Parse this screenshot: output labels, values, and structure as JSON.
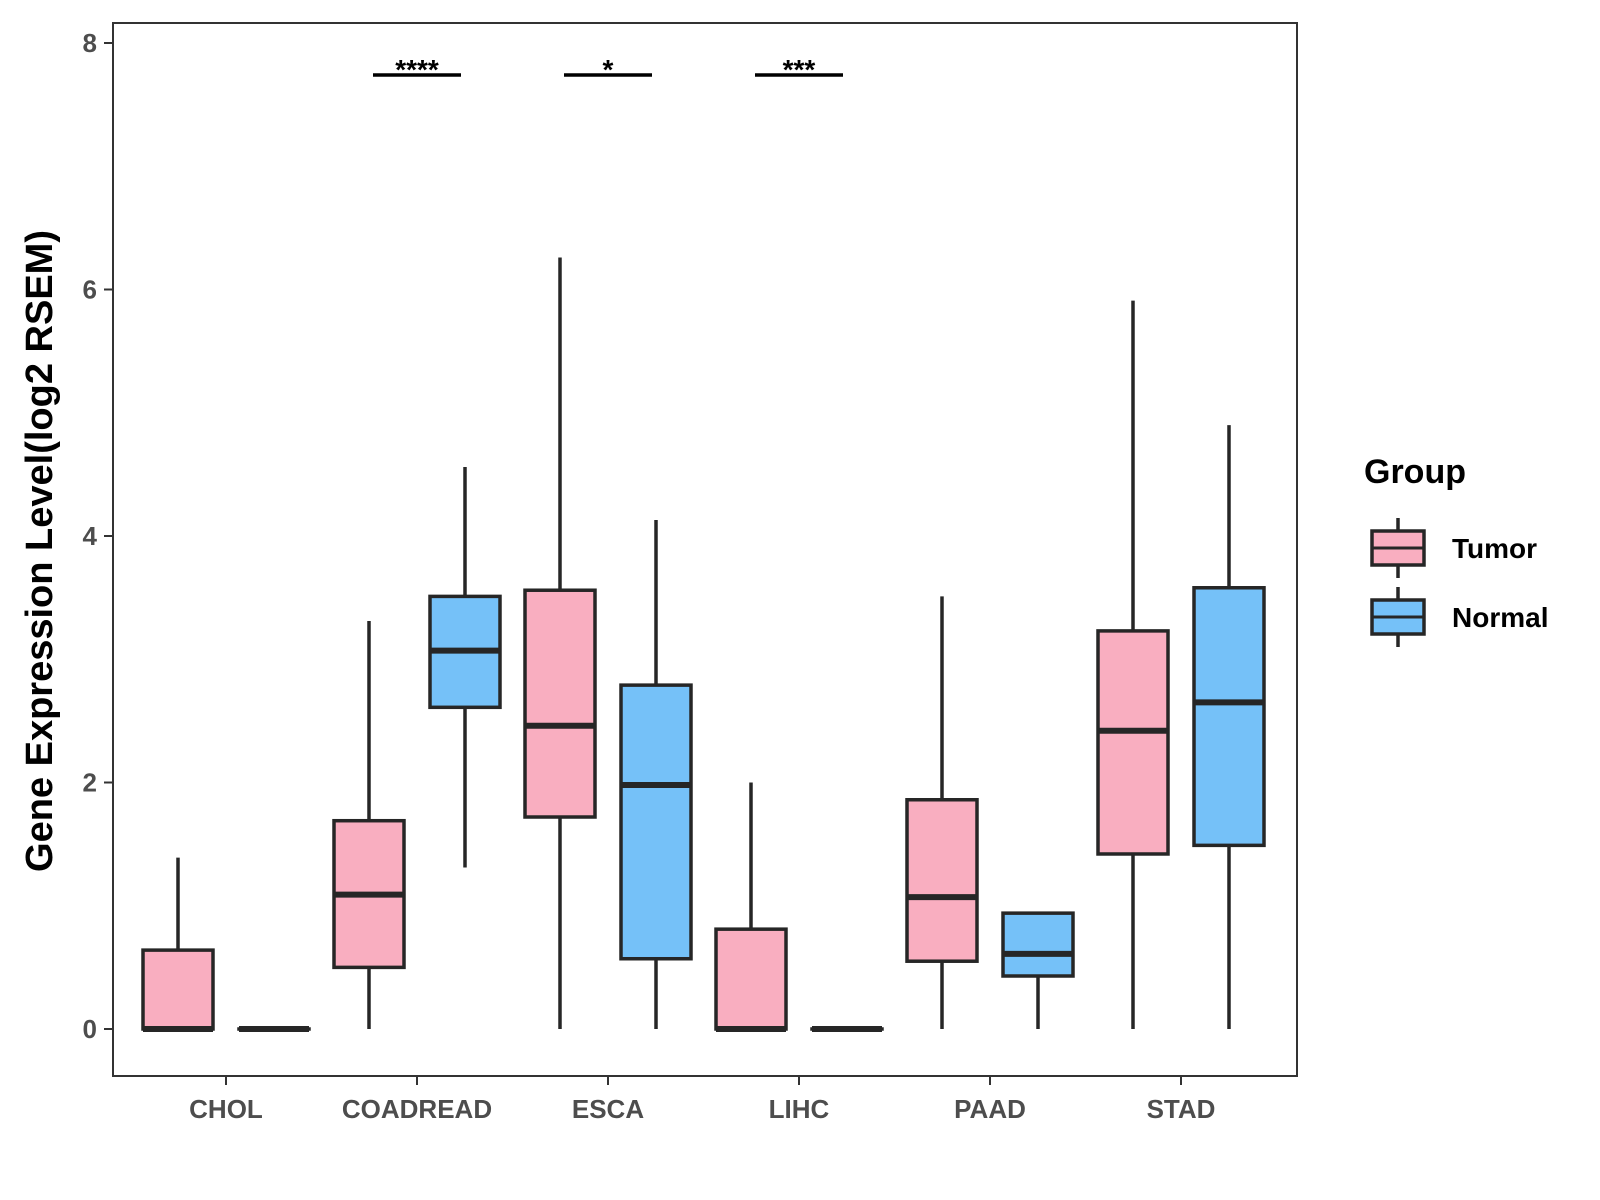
{
  "chart_data": {
    "type": "boxplot",
    "title": "",
    "xlabel": "",
    "ylabel": "Gene Expression Level(log2 RSEM)",
    "ylim": [
      -0.75,
      8.35
    ],
    "yticks": [
      0,
      2,
      4,
      6,
      8
    ],
    "grid": false,
    "legend": {
      "title": "Group",
      "placement": "right"
    },
    "categories": [
      "CHOL",
      "COADREAD",
      "ESCA",
      "LIHC",
      "PAAD",
      "STAD"
    ],
    "series": [
      {
        "name": "Tumor",
        "color": "#f9aec0",
        "boxes": [
          {
            "whisker_low": 0,
            "q1": 0,
            "median": 0,
            "q3": 0.64,
            "whisker_high": 1.39
          },
          {
            "whisker_low": 0,
            "q1": 0.5,
            "median": 1.09,
            "q3": 1.69,
            "whisker_high": 3.31
          },
          {
            "whisker_low": 0,
            "q1": 1.72,
            "median": 2.46,
            "q3": 3.56,
            "whisker_high": 6.26
          },
          {
            "whisker_low": 0,
            "q1": 0,
            "median": 0,
            "q3": 0.81,
            "whisker_high": 2.0
          },
          {
            "whisker_low": 0,
            "q1": 0.55,
            "median": 1.07,
            "q3": 1.86,
            "whisker_high": 3.51
          },
          {
            "whisker_low": 0,
            "q1": 1.42,
            "median": 2.42,
            "q3": 3.23,
            "whisker_high": 5.91
          }
        ]
      },
      {
        "name": "Normal",
        "color": "#75c1f8",
        "boxes": [
          {
            "whisker_low": 0,
            "q1": 0,
            "median": 0,
            "q3": 0,
            "whisker_high": 0
          },
          {
            "whisker_low": 1.31,
            "q1": 2.61,
            "median": 3.07,
            "q3": 3.51,
            "whisker_high": 4.56
          },
          {
            "whisker_low": 0,
            "q1": 0.57,
            "median": 1.98,
            "q3": 2.79,
            "whisker_high": 4.13
          },
          {
            "whisker_low": 0,
            "q1": 0,
            "median": 0,
            "q3": 0,
            "whisker_high": 0
          },
          {
            "whisker_low": 0,
            "q1": 0.43,
            "median": 0.61,
            "q3": 0.94,
            "whisker_high": 0.94
          },
          {
            "whisker_low": 0,
            "q1": 1.49,
            "median": 2.65,
            "q3": 3.58,
            "whisker_high": 4.9
          }
        ]
      }
    ],
    "significance": [
      {
        "category": "COADREAD",
        "label": "****"
      },
      {
        "category": "ESCA",
        "label": "*"
      },
      {
        "category": "LIHC",
        "label": "***"
      }
    ]
  }
}
